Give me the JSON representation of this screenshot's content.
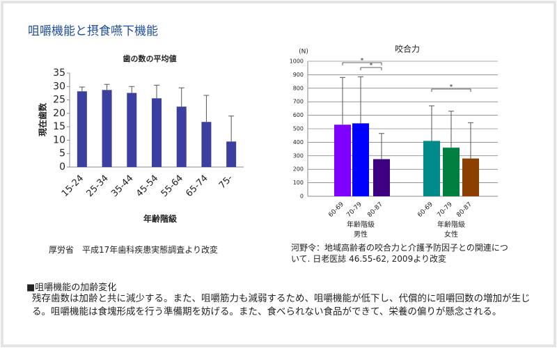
{
  "slide": {
    "title": "咀嚼機能と摂食嚥下機能",
    "caption_left": "厚労省　平成17年歯科疾患実態調査より改変",
    "caption_right": "河野令：地域高齢者の咬合力と介護予防因子との関連について. 日老医誌 46.55-62, 2009より改変",
    "heading": "■咀嚼機能の加齢変化",
    "body": "残存歯数は加齢と共に減少する。また、咀嚼筋力も減弱するため、咀嚼機能が低下し、代償的に咀嚼回数の増加が生じる。咀嚼機能は食塊形成を行う準備期を妨げる。また、食べられない食品ができて、栄養の偏りが懸念される。"
  },
  "chart_data": [
    {
      "type": "bar",
      "title": "歯の数の平均値",
      "y_label": "現在歯数",
      "x_label": "年齢階級",
      "categories": [
        "15-24",
        "25-34",
        "35-44",
        "45-54",
        "55-64",
        "65-74",
        "75-"
      ],
      "values": [
        28.2,
        28.7,
        27.6,
        25.6,
        22.5,
        16.8,
        9.5
      ],
      "errors": [
        1.6,
        2.1,
        2.4,
        4.9,
        7,
        9.9,
        9.5
      ],
      "color": "#3b3fa0",
      "ylim": [
        0,
        35
      ],
      "yticks": [
        0,
        5,
        10,
        15,
        20,
        25,
        30,
        35
      ],
      "grid": false
    },
    {
      "type": "bar",
      "title": "咬合力",
      "y_label": "(N)",
      "categories": [
        "60-69",
        "70-79",
        "80-87",
        "60-69",
        "70-79",
        "80-87"
      ],
      "values": [
        530,
        540,
        275,
        410,
        360,
        280
      ],
      "errors": [
        350,
        345,
        190,
        260,
        270,
        265
      ],
      "colors": [
        "#8000ff",
        "#0000ff",
        "#3d0080",
        "#008b8b",
        "#008040",
        "#8b4000"
      ],
      "groups": [
        {
          "label": "年齢階級",
          "name": "男性"
        },
        {
          "label": "年齢階級",
          "name": "女性"
        }
      ],
      "annotations": [
        "*",
        "*",
        "*"
      ],
      "ylim": [
        0,
        1000
      ],
      "yticks": [
        0,
        100,
        200,
        300,
        400,
        500,
        600,
        700,
        800,
        900,
        1000
      ],
      "grid": true
    }
  ]
}
